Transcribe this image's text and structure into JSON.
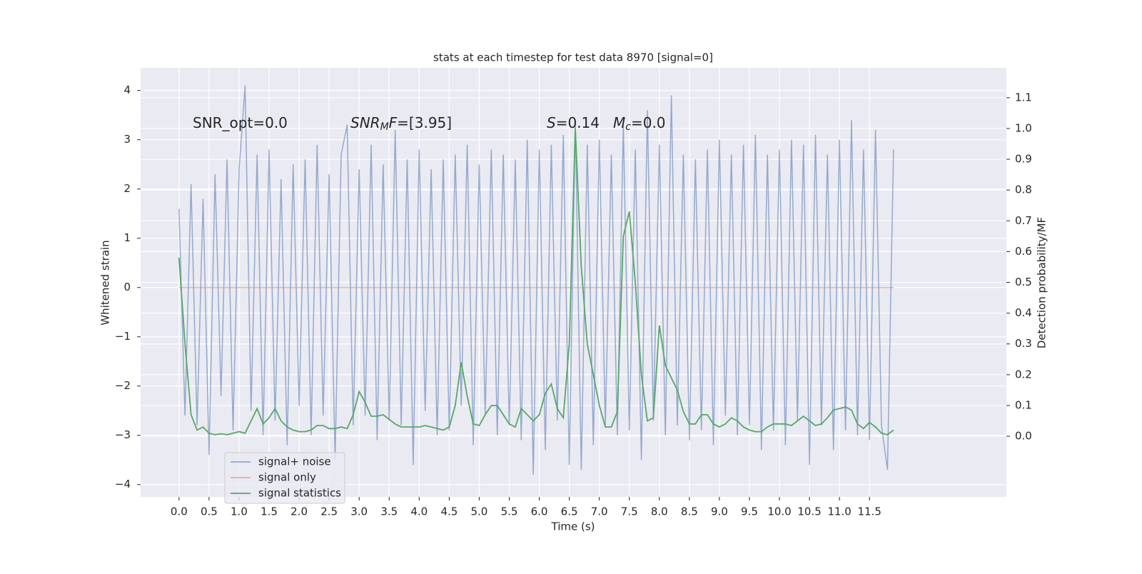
{
  "chart_data": {
    "type": "line",
    "title": "stats at each timestep for test data 8970 [signal=0]",
    "xlabel": "Time (s)",
    "ylabel": "Whitened strain",
    "y2label": "Detection probability/MF",
    "annotations": [
      [
        {
          "text": "SNR_opt=0.0",
          "style": "normal"
        }
      ],
      [
        {
          "text": "SNR",
          "style": "italic"
        },
        {
          "text": "M",
          "style": "sub"
        },
        {
          "text": "F",
          "style": "italic"
        },
        {
          "text": "=[3.95]",
          "style": "normal"
        }
      ],
      [
        {
          "text": "S",
          "style": "italic"
        },
        {
          "text": "=0.14",
          "style": "normal"
        }
      ],
      [
        {
          "text": "M",
          "style": "italic"
        },
        {
          "text": "c",
          "style": "sub"
        },
        {
          "text": "=0.0",
          "style": "normal"
        }
      ]
    ],
    "x": [
      0,
      0.1,
      0.2,
      0.3,
      0.4,
      0.5,
      0.6,
      0.7,
      0.8,
      0.9,
      1,
      1.1,
      1.2,
      1.3,
      1.4,
      1.5,
      1.6,
      1.7,
      1.8,
      1.9,
      2,
      2.1,
      2.2,
      2.3,
      2.4,
      2.5,
      2.6,
      2.7,
      2.8,
      2.9,
      3,
      3.1,
      3.2,
      3.3,
      3.4,
      3.5,
      3.6,
      3.7,
      3.8,
      3.9,
      4,
      4.1,
      4.2,
      4.3,
      4.4,
      4.5,
      4.6,
      4.7,
      4.8,
      4.9,
      5,
      5.1,
      5.2,
      5.3,
      5.4,
      5.5,
      5.6,
      5.7,
      5.8,
      5.9,
      6,
      6.1,
      6.2,
      6.3,
      6.4,
      6.5,
      6.6,
      6.7,
      6.8,
      6.9,
      7,
      7.1,
      7.2,
      7.3,
      7.4,
      7.5,
      7.6,
      7.7,
      7.8,
      7.9,
      8,
      8.1,
      8.2,
      8.3,
      8.4,
      8.5,
      8.6,
      8.7,
      8.8,
      8.9,
      9,
      9.1,
      9.2,
      9.3,
      9.4,
      9.5,
      9.6,
      9.7,
      9.8,
      9.9,
      10,
      10.1,
      10.2,
      10.3,
      10.4,
      10.5,
      10.6,
      10.7,
      10.8,
      10.9,
      11,
      11.1,
      11.2,
      11.3,
      11.4,
      11.5,
      11.6,
      11.7,
      11.8,
      11.9
    ],
    "series": [
      {
        "name": "signal+ noise",
        "color": "#4c72b0",
        "axis": "y",
        "values": [
          1.6,
          -2.6,
          2.1,
          -2.8,
          1.8,
          -3.4,
          2.3,
          -2.2,
          2.6,
          -2.9,
          2.4,
          4.1,
          -2.5,
          2.7,
          -3.0,
          2.8,
          -2.7,
          2.2,
          -3.2,
          2.5,
          -2.4,
          2.6,
          -3.0,
          2.9,
          -2.6,
          2.3,
          -3.5,
          2.7,
          3.3,
          -2.8,
          2.4,
          -2.6,
          2.9,
          -3.1,
          2.5,
          -2.7,
          3.2,
          -2.8,
          2.6,
          -3.6,
          2.8,
          -2.5,
          2.4,
          -3.0,
          2.6,
          -2.9,
          2.7,
          -2.4,
          2.9,
          -3.2,
          2.5,
          -2.6,
          2.8,
          -3.0,
          2.7,
          -2.8,
          2.6,
          -3.1,
          3.0,
          -3.8,
          2.8,
          -3.3,
          2.9,
          -2.7,
          3.1,
          -3.6,
          3.4,
          -3.7,
          2.9,
          -3.2,
          3.0,
          -2.8,
          2.7,
          -3.0,
          3.3,
          -2.9,
          2.8,
          -3.5,
          3.6,
          -2.7,
          2.9,
          -3.0,
          3.9,
          -2.8,
          2.7,
          -3.1,
          2.6,
          -2.9,
          2.8,
          -3.2,
          3.0,
          -2.6,
          2.7,
          -3.0,
          2.9,
          -2.8,
          3.1,
          -3.3,
          2.7,
          -2.9,
          2.8,
          -3.2,
          3.0,
          -2.7,
          2.9,
          -3.6,
          3.1,
          -2.8,
          2.7,
          -3.3,
          3.0,
          -2.9,
          3.4,
          -3.0,
          2.8,
          -3.1,
          3.2,
          -2.8,
          -3.7,
          2.8
        ]
      },
      {
        "name": "signal only",
        "color": "#dd8452",
        "axis": "y",
        "values": [
          0,
          0,
          0,
          0,
          0,
          0,
          0,
          0,
          0,
          0,
          0,
          0,
          0,
          0,
          0,
          0,
          0,
          0,
          0,
          0,
          0,
          0,
          0,
          0,
          0,
          0,
          0,
          0,
          0,
          0,
          0,
          0,
          0,
          0,
          0,
          0,
          0,
          0,
          0,
          0,
          0,
          0,
          0,
          0,
          0,
          0,
          0,
          0,
          0,
          0,
          0,
          0,
          0,
          0,
          0,
          0,
          0,
          0,
          0,
          0,
          0,
          0,
          0,
          0,
          0,
          0,
          0,
          0,
          0,
          0,
          0,
          0,
          0,
          0,
          0,
          0,
          0,
          0,
          0,
          0,
          0,
          0,
          0,
          0,
          0,
          0,
          0,
          0,
          0,
          0,
          0,
          0,
          0,
          0,
          0,
          0,
          0,
          0,
          0,
          0,
          0,
          0,
          0,
          0,
          0,
          0,
          0,
          0,
          0,
          0,
          0,
          0,
          0,
          0,
          0,
          0,
          0,
          0,
          0,
          0
        ]
      },
      {
        "name": "signal statistics",
        "color": "#55a868",
        "axis": "y2",
        "values": [
          0.58,
          0.3,
          0.07,
          0.02,
          0.03,
          0.01,
          0.005,
          0.008,
          0.005,
          0.01,
          0.015,
          0.01,
          0.05,
          0.09,
          0.04,
          0.06,
          0.09,
          0.05,
          0.03,
          0.02,
          0.015,
          0.015,
          0.02,
          0.035,
          0.035,
          0.025,
          0.025,
          0.03,
          0.025,
          0.07,
          0.145,
          0.11,
          0.065,
          0.065,
          0.07,
          0.055,
          0.04,
          0.03,
          0.03,
          0.03,
          0.03,
          0.035,
          0.03,
          0.025,
          0.02,
          0.03,
          0.1,
          0.24,
          0.13,
          0.04,
          0.035,
          0.07,
          0.1,
          0.1,
          0.07,
          0.04,
          0.03,
          0.09,
          0.07,
          0.05,
          0.07,
          0.14,
          0.17,
          0.09,
          0.06,
          0.3,
          1.0,
          0.55,
          0.3,
          0.2,
          0.1,
          0.03,
          0.03,
          0.08,
          0.65,
          0.73,
          0.5,
          0.2,
          0.05,
          0.06,
          0.36,
          0.23,
          0.19,
          0.15,
          0.08,
          0.04,
          0.04,
          0.07,
          0.07,
          0.04,
          0.03,
          0.04,
          0.06,
          0.05,
          0.03,
          0.02,
          0.015,
          0.015,
          0.03,
          0.04,
          0.04,
          0.04,
          0.035,
          0.05,
          0.065,
          0.05,
          0.035,
          0.04,
          0.06,
          0.085,
          0.09,
          0.095,
          0.085,
          0.04,
          0.025,
          0.045,
          0.03,
          0.01,
          0.005,
          0.02
        ]
      }
    ],
    "xlim": [
      -0.64,
      13.78
    ],
    "ylim": [
      -4.25,
      4.46
    ],
    "y2lim": [
      -0.197,
      1.197
    ],
    "xticks": [
      {
        "value": 0,
        "label": "0.0"
      },
      0.5,
      {
        "value": 1,
        "label": "1.0"
      },
      1.5,
      {
        "value": 2,
        "label": "2.0"
      },
      2.5,
      {
        "value": 3,
        "label": "3.0"
      },
      3.5,
      {
        "value": 4,
        "label": "4.0"
      },
      4.5,
      {
        "value": 5,
        "label": "5.0"
      },
      5.5,
      {
        "value": 6,
        "label": "6.0"
      },
      6.5,
      {
        "value": 7,
        "label": "7.0"
      },
      7.5,
      {
        "value": 8,
        "label": "8.0"
      },
      8.5,
      {
        "value": 9,
        "label": "9.0"
      },
      9.5,
      {
        "value": 10,
        "label": "10.0"
      },
      10.5,
      {
        "value": 11,
        "label": "11.0"
      },
      11.5
    ],
    "yticks": [
      {
        "value": -4,
        "label": "−4"
      },
      {
        "value": -3,
        "label": "−3"
      },
      {
        "value": -2,
        "label": "−2"
      },
      {
        "value": -1,
        "label": "−1"
      },
      0,
      1,
      2,
      3,
      4
    ],
    "y2ticks": [
      {
        "value": 0,
        "label": "0.0"
      },
      0.1,
      0.2,
      0.3,
      0.4,
      0.5,
      0.6,
      0.7,
      0.8,
      0.9,
      {
        "value": 1,
        "label": "1.0"
      },
      1.1
    ],
    "grid": true,
    "legend": "lower left"
  }
}
